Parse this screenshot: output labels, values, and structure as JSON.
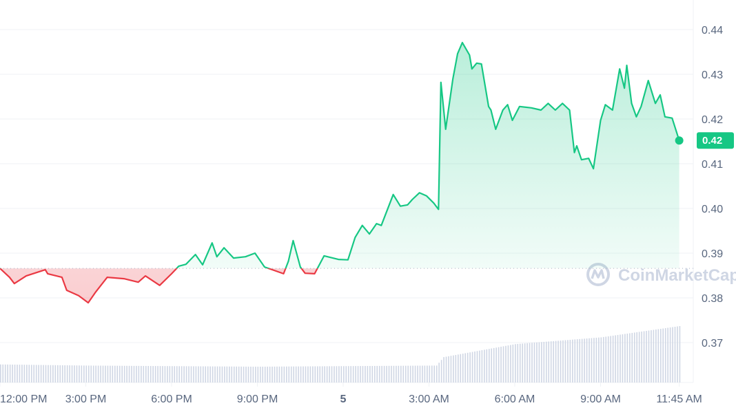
{
  "chart_data": {
    "type": "line",
    "title": "",
    "xlabel": "",
    "ylabel": "",
    "ylim": [
      0.362,
      0.4465
    ],
    "y_ticks": [
      "0.44",
      "0.43",
      "0.42",
      "0.41",
      "0.40",
      "0.39",
      "0.38",
      "0.37"
    ],
    "x_ticks": [
      "12:00 PM",
      "3:00 PM",
      "6:00 PM",
      "9:00 PM",
      "5",
      "3:00 AM",
      "6:00 AM",
      "9:00 AM",
      "11:45 AM"
    ],
    "x_tick_times": [
      "12:00",
      "15:00",
      "18:00",
      "21:00",
      "00:00",
      "03:00",
      "06:00",
      "09:00",
      "11:45"
    ],
    "grid": "horizontal",
    "reference_price": 0.3866,
    "current_price_label": "0.42",
    "current_price": 0.4152,
    "colors": {
      "up": "#16c784",
      "down": "#ea3943",
      "volume": "#cfd6e4",
      "grid": "#eff2f5",
      "axis_text": "#58667e",
      "watermark": "#cfd6e4"
    },
    "watermark": "CoinMarketCap",
    "series": [
      {
        "points": [
          [
            "12:00",
            0.3866
          ],
          [
            "12:20",
            0.3846
          ],
          [
            "12:30",
            0.3832
          ],
          [
            "12:55",
            0.3849
          ],
          [
            "13:35",
            0.3863
          ],
          [
            "13:40",
            0.3854
          ],
          [
            "14:10",
            0.3846
          ],
          [
            "14:20",
            0.3817
          ],
          [
            "14:45",
            0.3805
          ],
          [
            "15:05",
            0.3789
          ],
          [
            "15:20",
            0.3812
          ],
          [
            "15:45",
            0.3846
          ],
          [
            "16:20",
            0.3843
          ],
          [
            "16:50",
            0.3835
          ],
          [
            "17:05",
            0.3849
          ],
          [
            "17:35",
            0.3828
          ],
          [
            "18:00",
            0.3854
          ],
          [
            "18:15",
            0.3871
          ],
          [
            "18:30",
            0.3875
          ],
          [
            "18:50",
            0.3897
          ],
          [
            "19:05",
            0.3874
          ],
          [
            "19:25",
            0.3923
          ],
          [
            "19:35",
            0.3892
          ],
          [
            "19:50",
            0.3912
          ],
          [
            "20:10",
            0.3889
          ],
          [
            "20:35",
            0.3892
          ],
          [
            "20:55",
            0.39
          ],
          [
            "21:15",
            0.3869
          ],
          [
            "21:55",
            0.3854
          ],
          [
            "22:05",
            0.3882
          ],
          [
            "22:15",
            0.3928
          ],
          [
            "22:30",
            0.3869
          ],
          [
            "22:40",
            0.3855
          ],
          [
            "23:00",
            0.3854
          ],
          [
            "23:20",
            0.3894
          ],
          [
            "23:50",
            0.3886
          ],
          [
            "00:10",
            0.3885
          ],
          [
            "00:25",
            0.3935
          ],
          [
            "00:40",
            0.3962
          ],
          [
            "00:55",
            0.3943
          ],
          [
            "01:10",
            0.3966
          ],
          [
            "01:20",
            0.3962
          ],
          [
            "01:45",
            0.4031
          ],
          [
            "02:00",
            0.4005
          ],
          [
            "02:15",
            0.4008
          ],
          [
            "02:25",
            0.402
          ],
          [
            "02:40",
            0.4035
          ],
          [
            "02:55",
            0.4028
          ],
          [
            "03:10",
            0.4012
          ],
          [
            "03:20",
            0.3998
          ],
          [
            "03:25",
            0.4282
          ],
          [
            "03:35",
            0.4177
          ],
          [
            "03:50",
            0.4289
          ],
          [
            "04:00",
            0.4346
          ],
          [
            "04:10",
            0.4371
          ],
          [
            "04:25",
            0.4343
          ],
          [
            "04:30",
            0.4312
          ],
          [
            "04:40",
            0.4325
          ],
          [
            "04:50",
            0.4323
          ],
          [
            "05:05",
            0.4228
          ],
          [
            "05:10",
            0.422
          ],
          [
            "05:20",
            0.4177
          ],
          [
            "05:35",
            0.422
          ],
          [
            "05:45",
            0.4232
          ],
          [
            "05:55",
            0.4197
          ],
          [
            "06:10",
            0.4228
          ],
          [
            "06:35",
            0.4225
          ],
          [
            "06:55",
            0.422
          ],
          [
            "07:10",
            0.4235
          ],
          [
            "07:25",
            0.422
          ],
          [
            "07:40",
            0.4235
          ],
          [
            "07:55",
            0.422
          ],
          [
            "08:05",
            0.4125
          ],
          [
            "08:10",
            0.414
          ],
          [
            "08:20",
            0.4109
          ],
          [
            "08:35",
            0.4112
          ],
          [
            "08:45",
            0.4089
          ],
          [
            "09:00",
            0.4197
          ],
          [
            "09:10",
            0.4232
          ],
          [
            "09:25",
            0.422
          ],
          [
            "09:40",
            0.4312
          ],
          [
            "09:50",
            0.4269
          ],
          [
            "09:55",
            0.432
          ],
          [
            "10:05",
            0.4235
          ],
          [
            "10:15",
            0.4205
          ],
          [
            "10:25",
            0.4228
          ],
          [
            "10:40",
            0.4286
          ],
          [
            "10:55",
            0.4235
          ],
          [
            "11:05",
            0.4254
          ],
          [
            "11:15",
            0.4205
          ],
          [
            "11:30",
            0.4202
          ],
          [
            "11:45",
            0.4152
          ]
        ]
      }
    ],
    "volume_relative": [
      [
        "12:00",
        0.32
      ],
      [
        "15:00",
        0.3
      ],
      [
        "18:00",
        0.29
      ],
      [
        "21:00",
        0.28
      ],
      [
        "00:00",
        0.29
      ],
      [
        "03:15",
        0.3
      ],
      [
        "03:30",
        0.45
      ],
      [
        "06:00",
        0.68
      ],
      [
        "09:00",
        0.8
      ],
      [
        "11:45",
        1.0
      ]
    ]
  }
}
